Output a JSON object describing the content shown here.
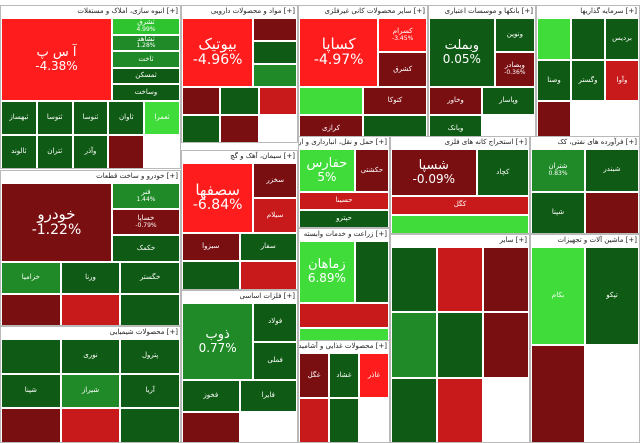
{
  "colors": {
    "deep_red": "#7a0f12",
    "red": "#c8191b",
    "bright_red": "#ff1c1c",
    "dark_green": "#0f5a14",
    "green": "#1f8a27",
    "bright_green": "#3fdc3a",
    "neutral_dark": "#6d0e10"
  },
  "sectors": [
    {
      "title": "[+] انبوه سازی، املاک و مستغلات",
      "tiles": [
        {
          "name": "آ س پ",
          "value": "-4.38%",
          "color": "#ff1c1c",
          "size": "big"
        },
        {
          "name": "ثشرق",
          "value": "4.99%",
          "color": "#2ec42f"
        },
        {
          "name": "ثشاهد",
          "value": "1.28%",
          "color": "#1f8a27"
        },
        {
          "name": "ثاخت",
          "value": "",
          "color": "#1f8a27"
        },
        {
          "name": "ثمسکن",
          "value": "",
          "color": "#0f5a14"
        },
        {
          "name": "وساخت",
          "value": "",
          "color": "#0f5a14"
        },
        {
          "name": "ثبهساز",
          "value": "",
          "color": "#0f5a14"
        },
        {
          "name": "ثتوسا",
          "value": "",
          "color": "#0f5a14"
        },
        {
          "name": "ثنوسا",
          "value": "",
          "color": "#0f5a14"
        },
        {
          "name": "ثاوان",
          "value": "",
          "color": "#0f5a14"
        },
        {
          "name": "ثعمرا",
          "value": "",
          "color": "#3fdc3a"
        },
        {
          "name": "ثالوند",
          "value": "",
          "color": "#0f5a14"
        },
        {
          "name": "ثتران",
          "value": "",
          "color": "#0f5a14"
        },
        {
          "name": "وآذر",
          "value": "",
          "color": "#0f5a14"
        },
        {
          "name": "",
          "value": "",
          "color": "#7a0f12"
        }
      ]
    },
    {
      "title": "[+] مواد و محصولات دارویی",
      "tiles": [
        {
          "name": "بیوتیک",
          "value": "-4.96%",
          "color": "#ff1c1c",
          "size": "huge"
        },
        {
          "name": "",
          "value": "",
          "color": "#7a0f12"
        },
        {
          "name": "",
          "value": "",
          "color": "#0f5a14"
        },
        {
          "name": "",
          "value": "",
          "color": "#1f8a27"
        },
        {
          "name": "",
          "value": "",
          "color": "#7a0f12"
        },
        {
          "name": "",
          "value": "",
          "color": "#0f5a14"
        },
        {
          "name": "",
          "value": "",
          "color": "#c8191b"
        },
        {
          "name": "",
          "value": "",
          "color": "#0f5a14"
        },
        {
          "name": "",
          "value": "",
          "color": "#7a0f12"
        }
      ]
    },
    {
      "title": "[+] سایر محصولات کانی غیرفلزی",
      "tiles": [
        {
          "name": "کساپا",
          "value": "-4.97%",
          "color": "#ff1c1c",
          "size": "huge"
        },
        {
          "name": "کسرام",
          "value": "-3.45%",
          "color": "#ff1c1c"
        },
        {
          "name": "کشرق",
          "value": "",
          "color": "#7a0f12"
        },
        {
          "name": "",
          "value": "",
          "color": "#3fdc3a"
        },
        {
          "name": "کتوکا",
          "value": "",
          "color": "#7a0f12"
        },
        {
          "name": "کرازی",
          "value": "",
          "color": "#7a0f12"
        },
        {
          "name": "",
          "value": "",
          "color": "#0f5a14"
        }
      ]
    },
    {
      "title": "[+] بانکها و موسسات اعتباری",
      "tiles": [
        {
          "name": "وبملت",
          "value": "0.05%",
          "color": "#0f5a14",
          "size": "big"
        },
        {
          "name": "ونوین",
          "value": "",
          "color": "#0f5a14"
        },
        {
          "name": "وبصادر",
          "value": "-0.36%",
          "color": "#7a0f12"
        },
        {
          "name": "وخاور",
          "value": "",
          "color": "#7a0f12"
        },
        {
          "name": "وپاسار",
          "value": "",
          "color": "#0f5a14"
        },
        {
          "name": "وبانک",
          "value": "",
          "color": "#0f5a14"
        }
      ]
    },
    {
      "title": "[+] سرمایه گذاریها",
      "tiles": [
        {
          "name": "",
          "value": "",
          "color": "#3fdc3a"
        },
        {
          "name": "",
          "value": "",
          "color": "#0f5a14"
        },
        {
          "name": "بردیس",
          "value": "",
          "color": "#0f5a14"
        },
        {
          "name": "وصنا",
          "value": "",
          "color": "#0f5a14"
        },
        {
          "name": "وگستر",
          "value": "",
          "color": "#0f5a14"
        },
        {
          "name": "وآوا",
          "value": "",
          "color": "#c8191b"
        },
        {
          "name": "",
          "value": "",
          "color": "#7a0f12"
        }
      ]
    },
    {
      "title": "[+] سیمان، آهک و گچ",
      "tiles": [
        {
          "name": "سصفها",
          "value": "-6.84%",
          "color": "#ff1c1c",
          "size": "huge"
        },
        {
          "name": "سخزر",
          "value": "",
          "color": "#7a0f12"
        },
        {
          "name": "سیلام",
          "value": "",
          "color": "#c8191b"
        },
        {
          "name": "سبزوا",
          "value": "",
          "color": "#7a0f12"
        },
        {
          "name": "سفار",
          "value": "",
          "color": "#0f5a14"
        },
        {
          "name": "",
          "value": "",
          "color": "#0f5a14"
        },
        {
          "name": "",
          "value": "",
          "color": "#c8191b"
        }
      ]
    },
    {
      "title": "[+] استخراج کانه های فلزی",
      "tiles": [
        {
          "name": "شسپا",
          "value": "-0.09%",
          "color": "#7a0f12",
          "size": "big"
        },
        {
          "name": "کچاد",
          "value": "",
          "color": "#0f5a14"
        },
        {
          "name": "کگل",
          "value": "",
          "color": "#c8191b"
        },
        {
          "name": "",
          "value": "",
          "color": "#3fdc3a"
        }
      ]
    },
    {
      "title": "[+] خودرو و ساخت قطعات",
      "tiles": [
        {
          "name": "خودرو",
          "value": "-1.22%",
          "color": "#7a0f12",
          "size": "huge"
        },
        {
          "name": "فنر",
          "value": "1.44%",
          "color": "#1f8a27"
        },
        {
          "name": "خساپا",
          "value": "-0.79%",
          "color": "#7a0f12"
        },
        {
          "name": "خکمک",
          "value": "",
          "color": "#0f5a14"
        },
        {
          "name": "خزامیا",
          "value": "",
          "color": "#1f8a27"
        },
        {
          "name": "ورنا",
          "value": "",
          "color": "#0f5a14"
        },
        {
          "name": "خگستر",
          "value": "",
          "color": "#0f5a14"
        },
        {
          "name": "",
          "value": "",
          "color": "#7a0f12"
        },
        {
          "name": "",
          "value": "",
          "color": "#c8191b"
        },
        {
          "name": "",
          "value": "",
          "color": "#0f5a14"
        }
      ]
    },
    {
      "title": "[+] محصولات شیمیایی",
      "tiles": [
        {
          "name": "",
          "value": "",
          "color": "#0f5a14"
        },
        {
          "name": "نوری",
          "value": "",
          "color": "#0f5a14"
        },
        {
          "name": "پترول",
          "value": "",
          "color": "#0f5a14"
        },
        {
          "name": "شپنا",
          "value": "",
          "color": "#0f5a14"
        },
        {
          "name": "شیراز",
          "value": "",
          "color": "#1f8a27"
        },
        {
          "name": "آریا",
          "value": "",
          "color": "#0f5a14"
        },
        {
          "name": "",
          "value": "",
          "color": "#7a0f12"
        },
        {
          "name": "",
          "value": "",
          "color": "#c8191b"
        },
        {
          "name": "",
          "value": "",
          "color": "#0f5a14"
        }
      ]
    },
    {
      "title": "[+] فرآورده های نفتی، کک",
      "tiles": [
        {
          "name": "شتران",
          "value": "0.83%",
          "color": "#1f8a27"
        },
        {
          "name": "شبندر",
          "value": "",
          "color": "#0f5a14"
        },
        {
          "name": "شپنا",
          "value": "",
          "color": "#0f5a14"
        },
        {
          "name": "",
          "value": "",
          "color": "#7a0f12"
        }
      ]
    },
    {
      "title": "[+] زراعت و خدمات وابسته",
      "tiles": [
        {
          "name": "زماهان",
          "value": "6.89%",
          "color": "#3fdc3a",
          "size": "big"
        },
        {
          "name": "",
          "value": "",
          "color": "#0f5a14"
        },
        {
          "name": "",
          "value": "",
          "color": "#c8191b"
        },
        {
          "name": "",
          "value": "",
          "color": "#3fdc3a"
        }
      ]
    },
    {
      "title": "[+] محصولات غذایی و آشامیدنی",
      "tiles": [
        {
          "name": "غگل",
          "value": "",
          "color": "#7a0f12"
        },
        {
          "name": "غشاد",
          "value": "",
          "color": "#0f5a14"
        },
        {
          "name": "غاذر",
          "value": "",
          "color": "#ff1c1c"
        },
        {
          "name": "",
          "value": "",
          "color": "#c8191b"
        },
        {
          "name": "",
          "value": "",
          "color": "#0f5a14"
        }
      ]
    },
    {
      "title": "[+] فلزات اساسی",
      "tiles": [
        {
          "name": "ذوب",
          "value": "0.77%",
          "color": "#1f8a27",
          "size": "big"
        },
        {
          "name": "فولاد",
          "value": "",
          "color": "#0f5a14"
        },
        {
          "name": "فملی",
          "value": "",
          "color": "#0f5a14"
        },
        {
          "name": "فخوز",
          "value": "",
          "color": "#0f5a14"
        },
        {
          "name": "فایرا",
          "value": "",
          "color": "#0f5a14"
        },
        {
          "name": "",
          "value": "",
          "color": "#7a0f12"
        }
      ]
    },
    {
      "title": "[+] حمل و نقل، انبارداری و ارتباطات",
      "tiles": [
        {
          "name": "حفارس",
          "value": "5%",
          "color": "#3fdc3a",
          "size": "big"
        },
        {
          "name": "حکشتی",
          "value": "",
          "color": "#7a0f12"
        },
        {
          "name": "حسینا",
          "value": "",
          "color": "#c8191b"
        },
        {
          "name": "حپترو",
          "value": "",
          "color": "#0f5a14"
        }
      ]
    },
    {
      "title": "[+] ماشین آلات و تجهیزات",
      "tiles": [
        {
          "name": "بکام",
          "value": "",
          "color": "#3fdc3a"
        },
        {
          "name": "تپکو",
          "value": "",
          "color": "#0f5a14"
        },
        {
          "name": "",
          "value": "",
          "color": "#7a0f12"
        }
      ]
    },
    {
      "title": "[+] سایر",
      "tiles": [
        {
          "name": "",
          "value": "",
          "color": "#0f5a14"
        },
        {
          "name": "",
          "value": "",
          "color": "#c8191b"
        },
        {
          "name": "",
          "value": "",
          "color": "#7a0f12"
        },
        {
          "name": "",
          "value": "",
          "color": "#1f8a27"
        },
        {
          "name": "",
          "value": "",
          "color": "#0f5a14"
        },
        {
          "name": "",
          "value": "",
          "color": "#7a0f12"
        },
        {
          "name": "",
          "value": "",
          "color": "#0f5a14"
        },
        {
          "name": "",
          "value": "",
          "color": "#c8191b"
        }
      ]
    }
  ]
}
